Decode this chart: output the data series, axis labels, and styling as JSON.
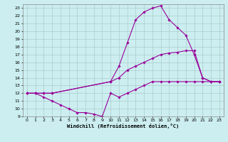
{
  "title": "",
  "xlabel": "Windchill (Refroidissement éolien,°C)",
  "background_color": "#cceef0",
  "grid_color": "#aacccc",
  "line_color": "#990099",
  "marker": "D",
  "markersize": 1.8,
  "linewidth": 0.8,
  "xlim": [
    -0.5,
    23.5
  ],
  "ylim": [
    9,
    23.5
  ],
  "yticks": [
    9,
    10,
    11,
    12,
    13,
    14,
    15,
    16,
    17,
    18,
    19,
    20,
    21,
    22,
    23
  ],
  "xticks": [
    0,
    1,
    2,
    3,
    4,
    5,
    6,
    7,
    8,
    9,
    10,
    11,
    12,
    13,
    14,
    15,
    16,
    17,
    18,
    19,
    20,
    21,
    22,
    23
  ],
  "series": [
    {
      "x": [
        0,
        1,
        2,
        3,
        4,
        5,
        6,
        7,
        8,
        9,
        10,
        11,
        12,
        13,
        14,
        15,
        16,
        17,
        18,
        19,
        20,
        21,
        22,
        23
      ],
      "y": [
        12,
        12,
        11.5,
        11,
        10.5,
        10,
        9.5,
        9.5,
        9.3,
        9.0,
        12,
        11.5,
        12,
        12.5,
        13,
        13.5,
        13.5,
        13.5,
        13.5,
        13.5,
        13.5,
        13.5,
        13.5,
        13.5
      ]
    },
    {
      "x": [
        0,
        1,
        2,
        3,
        10,
        11,
        12,
        13,
        14,
        15,
        16,
        17,
        18,
        19,
        20,
        21,
        22,
        23
      ],
      "y": [
        12,
        12,
        12,
        12,
        13.5,
        14,
        15,
        15.5,
        16,
        16.5,
        17,
        17.2,
        17.3,
        17.5,
        17.5,
        14,
        13.5,
        13.5
      ]
    },
    {
      "x": [
        0,
        1,
        2,
        3,
        10,
        11,
        12,
        13,
        14,
        15,
        16,
        17,
        18,
        19,
        20,
        21,
        22,
        23
      ],
      "y": [
        12,
        12,
        12,
        12,
        13.5,
        15.5,
        18.5,
        21.5,
        22.5,
        23,
        23.3,
        21.5,
        20.5,
        19.5,
        17.0,
        14,
        13.5,
        13.5
      ]
    }
  ]
}
